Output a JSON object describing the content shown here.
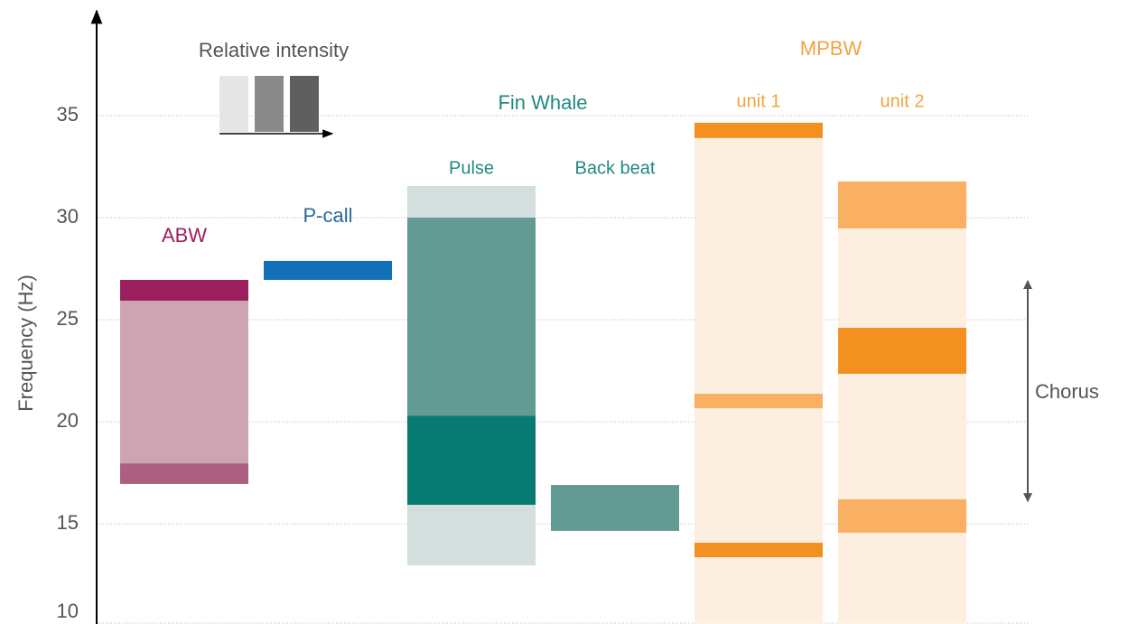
{
  "chart_data": {
    "type": "range",
    "y_label": "Frequency (Hz)",
    "ylim": [
      10,
      40
    ],
    "yticks": [
      10,
      15,
      20,
      25,
      30,
      35
    ],
    "grid": true,
    "groups": [
      "Fin Whale",
      "MPBW"
    ],
    "intensity_legend": {
      "title": "Relative intensity",
      "colors": [
        "#e6e5e6",
        "#8a8a8a",
        "#5f5f5f"
      ]
    },
    "annotation": {
      "text": "Chorus",
      "low": 16.1,
      "high": 26.9
    },
    "series": [
      {
        "name": "ABW",
        "color": "#9b1f5e",
        "bands": [
          {
            "low": 17.96,
            "high": 25.93,
            "color": "#cda4b2"
          },
          {
            "low": 25.93,
            "high": 26.95,
            "color": "#9b1f5e"
          },
          {
            "low": 16.95,
            "high": 17.96,
            "color": "#ad5f7f"
          }
        ]
      },
      {
        "name": "P-call",
        "color": "#2a6b9e",
        "bands": [
          {
            "low": 26.95,
            "high": 27.88,
            "color": "#1170b8"
          }
        ]
      },
      {
        "name": "Pulse",
        "color": "#1f8a80",
        "bands": [
          {
            "low": 30.0,
            "high": 31.55,
            "color": "#d2dfdd"
          },
          {
            "low": 20.3,
            "high": 30.0,
            "color": "#649a94"
          },
          {
            "low": 15.93,
            "high": 20.3,
            "color": "#077a72"
          },
          {
            "low": 12.96,
            "high": 15.93,
            "color": "#d2dfdd"
          }
        ]
      },
      {
        "name": "Back beat",
        "color": "#1f8a80",
        "bands": [
          {
            "low": 14.65,
            "high": 16.9,
            "color": "#649a94"
          }
        ]
      },
      {
        "name": "unit 1",
        "color": "#f3a340",
        "bands": [
          {
            "low": 10.1,
            "high": 34.65,
            "color": "#fdefdf"
          },
          {
            "low": 33.9,
            "high": 34.65,
            "color": "#f39120"
          },
          {
            "low": 20.66,
            "high": 21.37,
            "color": "#f9b062"
          },
          {
            "low": 13.36,
            "high": 14.07,
            "color": "#f39120"
          }
        ]
      },
      {
        "name": "unit 2",
        "color": "#f3a340",
        "bands": [
          {
            "low": 10.1,
            "high": 31.77,
            "color": "#fdefdf"
          },
          {
            "low": 29.47,
            "high": 31.77,
            "color": "#f9b062"
          },
          {
            "low": 22.35,
            "high": 24.6,
            "color": "#f39120"
          },
          {
            "low": 14.56,
            "high": 16.2,
            "color": "#f9b062"
          }
        ]
      }
    ]
  }
}
